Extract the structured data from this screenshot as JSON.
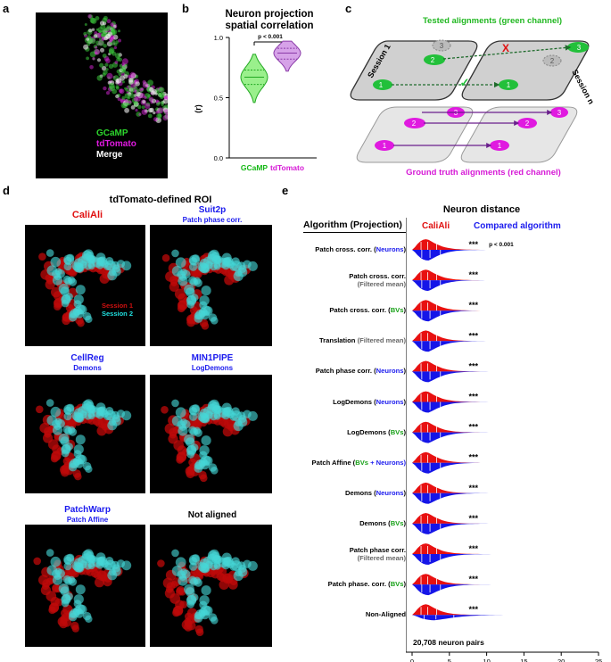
{
  "panel_a": {
    "label": "a",
    "legend": [
      {
        "text": "GCaMP",
        "color": "#2dd62d"
      },
      {
        "text": "tdTomato",
        "color": "#e01ae0"
      },
      {
        "text": "Merge",
        "color": "#ffffff"
      }
    ]
  },
  "panel_b": {
    "label": "b",
    "title_line1": "Neuron projection",
    "title_line2": "spatial correlation",
    "pvalue": "p < 0.001",
    "ylabel": "(r)",
    "yticks": [
      "0.0",
      "0.5",
      "1.0"
    ],
    "xticks": [
      "GCaMP",
      "tdTomato"
    ]
  },
  "panel_c": {
    "label": "c",
    "top_title": "Tested alignments (green channel)",
    "session1": "Session 1",
    "session_n": "Session n",
    "bottom_title": "Ground truth alignments (red channel)",
    "cross_mark": "X",
    "check_mark": "✓",
    "numbers": [
      "1",
      "2",
      "3"
    ]
  },
  "panel_d": {
    "label": "d",
    "title": "tdTomato-defined ROI",
    "session1_label": "Session 1",
    "session2_label": "Session 2",
    "tiles": [
      {
        "line1": "CaliAli",
        "line2": ""
      },
      {
        "line1": "Suit2p",
        "line2": "Patch phase corr."
      },
      {
        "line1": "CellReg",
        "line2": "Demons"
      },
      {
        "line1": "MIN1PIPE",
        "line2": "LogDemons"
      },
      {
        "line1": "PatchWarp",
        "line2": "Patch Affine"
      },
      {
        "line1": "Not aligned",
        "line2": ""
      }
    ]
  },
  "panel_e": {
    "label": "e",
    "title": "Neuron distance",
    "header_left": "Algorithm (Projection)",
    "legend_red": "CaliAli",
    "legend_blue": "Compared algorithm",
    "sig": "***",
    "pvalue": "p < 0.001",
    "note": "20,708 neuron pairs",
    "xlabel": "(µm)",
    "xticks": [
      "0",
      "5",
      "10",
      "15",
      "20",
      "25"
    ],
    "rows": [
      {
        "pre": "Patch cross. corr. (",
        "mid": "Neurons",
        "post": ")",
        "mid_color": "blue",
        "line2": ""
      },
      {
        "pre": "Patch cross. corr.",
        "mid": "",
        "post": "",
        "mid_color": "",
        "line2": "(Filtered mean)"
      },
      {
        "pre": "Patch cross. corr. (",
        "mid": "BVs",
        "post": ")",
        "mid_color": "green",
        "line2": ""
      },
      {
        "pre": "Translation ",
        "mid": "(Filtered mean)",
        "post": "",
        "mid_color": "gray",
        "line2": ""
      },
      {
        "pre": "Patch phase corr. (",
        "mid": "Neurons",
        "post": ")",
        "mid_color": "blue",
        "line2": ""
      },
      {
        "pre": "LogDemons (",
        "mid": "Neurons",
        "post": ")",
        "mid_color": "blue",
        "line2": ""
      },
      {
        "pre": "LogDemons (",
        "mid": "BVs",
        "post": ")",
        "mid_color": "green",
        "line2": ""
      },
      {
        "pre": "Patch Affine (",
        "mid": "BVs",
        "post": " + Neurons)",
        "mid_color": "green",
        "line2": ""
      },
      {
        "pre": "Demons (",
        "mid": "Neurons",
        "post": ")",
        "mid_color": "blue",
        "line2": ""
      },
      {
        "pre": "Demons (",
        "mid": "BVs",
        "post": ")",
        "mid_color": "green",
        "line2": ""
      },
      {
        "pre": "Patch phase corr.",
        "mid": "",
        "post": "",
        "mid_color": "",
        "line2": "(Filtered mean)"
      },
      {
        "pre": "Patch phase. corr. (",
        "mid": "BVs",
        "post": ")",
        "mid_color": "green",
        "line2": ""
      },
      {
        "pre": "Non-Aligned",
        "mid": "",
        "post": "",
        "mid_color": "",
        "line2": ""
      }
    ]
  },
  "chart_data": [
    {
      "type": "violin",
      "title": "Neuron projection spatial correlation",
      "ylabel": "(r)",
      "categories": [
        "GCaMP",
        "tdTomato"
      ],
      "ylim": [
        0,
        1.0
      ],
      "series": [
        {
          "name": "GCaMP",
          "median": 0.67,
          "q1": 0.61,
          "q3": 0.73,
          "min": 0.46,
          "max": 0.86
        },
        {
          "name": "tdTomato",
          "median": 0.87,
          "q1": 0.82,
          "q3": 0.91,
          "min": 0.72,
          "max": 0.97
        }
      ],
      "annotation": "p < 0.001"
    },
    {
      "type": "split-violin",
      "title": "Neuron distance",
      "xlabel": "(µm)",
      "xlim": [
        0,
        25
      ],
      "series_names": [
        "CaliAli",
        "Compared algorithm"
      ],
      "caliali_max": 22,
      "compared_max": [
        22,
        21,
        22,
        22,
        22,
        22,
        22,
        22,
        22,
        22,
        22,
        22,
        22.3
      ],
      "compared_spread": [
        1,
        1,
        1,
        1,
        1.1,
        1.1,
        1.2,
        1.2,
        1.2,
        1.2,
        1.4,
        1.3,
        2.6
      ]
    }
  ]
}
